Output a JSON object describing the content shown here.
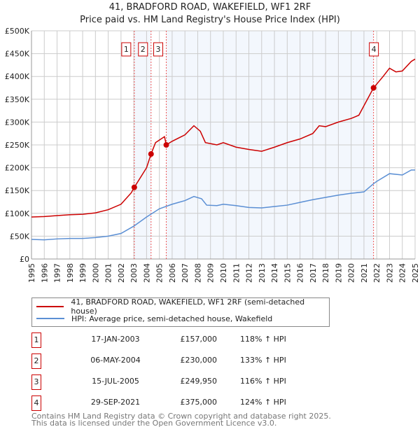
{
  "chart_data": {
    "type": "line",
    "title": "41, BRADFORD ROAD, WAKEFIELD, WF1 2RF",
    "subtitle": "Price paid vs. HM Land Registry's House Price Index (HPI)",
    "xlim": [
      1995,
      2025
    ],
    "ylim": [
      0,
      500000
    ],
    "yticks": [
      {
        "v": 0,
        "label": "£0"
      },
      {
        "v": 50000,
        "label": "£50K"
      },
      {
        "v": 100000,
        "label": "£100K"
      },
      {
        "v": 150000,
        "label": "£150K"
      },
      {
        "v": 200000,
        "label": "£200K"
      },
      {
        "v": 250000,
        "label": "£250K"
      },
      {
        "v": 300000,
        "label": "£300K"
      },
      {
        "v": 350000,
        "label": "£350K"
      },
      {
        "v": 400000,
        "label": "£400K"
      },
      {
        "v": 450000,
        "label": "£450K"
      },
      {
        "v": 500000,
        "label": "£500K"
      }
    ],
    "xticks": [
      "1995",
      "1996",
      "1997",
      "1998",
      "1999",
      "2000",
      "2001",
      "2002",
      "2003",
      "2004",
      "2005",
      "2006",
      "2007",
      "2008",
      "2009",
      "2010",
      "2011",
      "2012",
      "2013",
      "2014",
      "2015",
      "2016",
      "2017",
      "2018",
      "2019",
      "2020",
      "2021",
      "2022",
      "2023",
      "2024",
      "2025"
    ],
    "grid": true,
    "series": [
      {
        "name": "41, BRADFORD ROAD, WAKEFIELD, WF1 2RF (semi-detached house)",
        "color": "#cc0000",
        "x": [
          1995,
          1996,
          1997,
          1998,
          1999,
          2000,
          2001,
          2002,
          2002.8,
          2003.04,
          2004,
          2004.35,
          2004.7,
          2005.4,
          2005.54,
          2006,
          2007,
          2007.7,
          2008.2,
          2008.6,
          2009.5,
          2010,
          2011,
          2012,
          2013,
          2014,
          2015,
          2016,
          2017,
          2017.5,
          2018,
          2019,
          2020,
          2020.6,
          2021.75,
          2022.5,
          2023,
          2023.5,
          2024,
          2024.7,
          2025
        ],
        "y": [
          92000,
          93000,
          95000,
          97000,
          98000,
          101000,
          108000,
          120000,
          145000,
          157000,
          200000,
          230000,
          255000,
          268000,
          249950,
          258000,
          272000,
          292000,
          280000,
          255000,
          250000,
          255000,
          245000,
          240000,
          236000,
          245000,
          255000,
          263000,
          275000,
          292000,
          290000,
          300000,
          308000,
          315000,
          375000,
          400000,
          418000,
          410000,
          412000,
          433000,
          438000
        ]
      },
      {
        "name": "HPI: Average price, semi-detached house, Wakefield",
        "color": "#5b8fd4",
        "x": [
          1995,
          1996,
          1997,
          1998,
          1999,
          2000,
          2001,
          2002,
          2003,
          2004,
          2005,
          2006,
          2007,
          2007.7,
          2008.3,
          2008.7,
          2009.5,
          2010,
          2011,
          2012,
          2013,
          2014,
          2015,
          2016,
          2017,
          2018,
          2019,
          2020,
          2021,
          2021.75,
          2022,
          2023,
          2024,
          2024.7,
          2025
        ],
        "y": [
          43000,
          42000,
          44000,
          45000,
          45000,
          47000,
          50000,
          56000,
          72000,
          92000,
          110000,
          120000,
          128000,
          137000,
          132000,
          118000,
          117000,
          120000,
          117000,
          113000,
          112000,
          115000,
          118000,
          124000,
          130000,
          135000,
          140000,
          144000,
          147000,
          165000,
          170000,
          187000,
          184000,
          195000,
          195000
        ]
      }
    ],
    "sales": [
      {
        "n": "1",
        "x": 2003.04,
        "date": "17-JAN-2003",
        "price": 157000,
        "price_label": "£157,000",
        "hpi": "118% ↑ HPI"
      },
      {
        "n": "2",
        "x": 2004.35,
        "date": "06-MAY-2004",
        "price": 230000,
        "price_label": "£230,000",
        "hpi": "133% ↑ HPI"
      },
      {
        "n": "3",
        "x": 2005.54,
        "date": "15-JUL-2005",
        "price": 249950,
        "price_label": "£249,950",
        "hpi": "116% ↑ HPI"
      },
      {
        "n": "4",
        "x": 2021.75,
        "date": "29-SEP-2021",
        "price": 375000,
        "price_label": "£375,000",
        "hpi": "124% ↑ HPI"
      }
    ]
  },
  "footer": {
    "line1": "Contains HM Land Registry data © Crown copyright and database right 2025.",
    "line2": "This data is licensed under the Open Government Licence v3.0."
  }
}
